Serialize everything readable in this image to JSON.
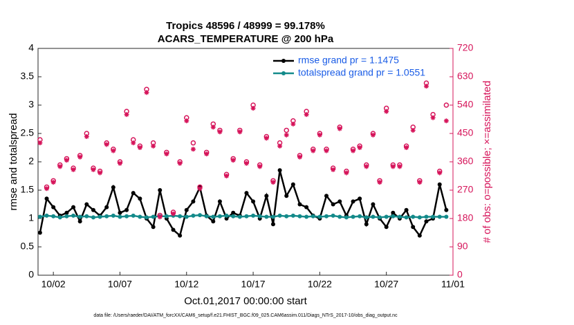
{
  "chart_data": {
    "type": "line",
    "title": "Tropics 48596 / 48999 = 99.178%",
    "subtitle": "ACARS_TEMPERATURE @ 200 hPa",
    "xlabel": "Oct.01,2017 00:00:00 start",
    "ylabel": "rmse and totalspread",
    "y2label": "# of obs: o=possible; ×=assimilated",
    "footnote": "data file: /Users/raeder/DAI/ATM_forcXX/CAM6_setup/f.e21.FHIST_BGC.f09_025.CAM6assim.011/Diags_NTrS_2017-10/obs_diag_output.nc",
    "x": [
      0,
      0.5,
      1,
      1.5,
      2,
      2.5,
      3,
      3.5,
      4,
      4.5,
      5,
      5.5,
      6,
      6.5,
      7,
      7.5,
      8,
      8.5,
      9,
      9.5,
      10,
      10.5,
      11,
      11.5,
      12,
      12.5,
      13,
      13.5,
      14,
      14.5,
      15,
      15.5,
      16,
      16.5,
      17,
      17.5,
      18,
      18.5,
      19,
      19.5,
      20,
      20.5,
      21,
      21.5,
      22,
      22.5,
      23,
      23.5,
      24,
      24.5,
      25,
      25.5,
      26,
      26.5,
      27,
      27.5,
      28,
      28.5,
      29,
      29.5,
      30,
      30.5
    ],
    "xlim": [
      -0.15,
      31
    ],
    "xticks": [
      {
        "value": 1,
        "label": "10/02"
      },
      {
        "value": 6,
        "label": "10/07"
      },
      {
        "value": 11,
        "label": "10/12"
      },
      {
        "value": 16,
        "label": "10/17"
      },
      {
        "value": 21,
        "label": "10/22"
      },
      {
        "value": 26,
        "label": "10/27"
      },
      {
        "value": 31,
        "label": "11/01"
      }
    ],
    "ylim": [
      0,
      4
    ],
    "yticks": [
      0,
      0.5,
      1,
      1.5,
      2,
      2.5,
      3,
      3.5,
      4
    ],
    "y2lim": [
      0,
      720
    ],
    "y2ticks": [
      0,
      90,
      180,
      270,
      360,
      450,
      540,
      630,
      720
    ],
    "legend": "upper right",
    "series": [
      {
        "name": "rmse grand pr = 1.1475",
        "color": "#000000",
        "marker": "filled",
        "values": [
          0.75,
          1.35,
          1.2,
          1.05,
          1.1,
          1.2,
          0.95,
          1.25,
          1.15,
          1.05,
          1.2,
          1.55,
          1.1,
          1.15,
          1.45,
          1.35,
          1.0,
          0.85,
          1.5,
          1.0,
          0.8,
          0.7,
          1.15,
          1.3,
          1.55,
          1.05,
          0.95,
          1.3,
          1.0,
          1.1,
          1.05,
          1.45,
          1.3,
          1.0,
          1.4,
          0.9,
          1.85,
          1.4,
          1.6,
          1.25,
          1.2,
          1.05,
          1.0,
          1.4,
          1.25,
          1.3,
          1.05,
          1.3,
          1.35,
          0.9,
          1.25,
          1.0,
          0.85,
          1.1,
          1.0,
          1.15,
          0.85,
          0.7,
          0.95,
          1.0,
          1.6,
          1.15
        ]
      },
      {
        "name": "totalspread grand pr = 1.0551",
        "color": "#138a8a",
        "marker": "filled",
        "values": [
          1.03,
          1.05,
          1.04,
          1.02,
          1.04,
          1.05,
          1.03,
          1.04,
          1.02,
          1.03,
          1.04,
          1.05,
          1.03,
          1.04,
          1.05,
          1.03,
          1.02,
          1.03,
          1.04,
          1.04,
          1.05,
          1.04,
          1.03,
          1.05,
          1.06,
          1.04,
          1.03,
          1.04,
          1.05,
          1.04,
          1.03,
          1.04,
          1.05,
          1.04,
          1.03,
          1.03,
          1.05,
          1.04,
          1.05,
          1.04,
          1.03,
          1.04,
          1.03,
          1.04,
          1.05,
          1.03,
          1.02,
          1.03,
          1.04,
          1.02,
          1.03,
          1.02,
          1.03,
          1.04,
          1.03,
          1.02,
          1.03,
          1.02,
          1.03,
          1.03,
          1.03,
          1.03
        ]
      },
      {
        "color": "#d6145a",
        "marker": "circle",
        "axis": "y2",
        "values": [
          430,
          280,
          300,
          350,
          370,
          340,
          380,
          450,
          340,
          330,
          420,
          400,
          360,
          520,
          430,
          410,
          590,
          420,
          190,
          390,
          200,
          360,
          500,
          420,
          280,
          390,
          480,
          460,
          320,
          370,
          460,
          360,
          540,
          350,
          440,
          300,
          420,
          460,
          490,
          380,
          520,
          400,
          450,
          400,
          340,
          470,
          330,
          400,
          410,
          350,
          450,
          300,
          530,
          350,
          350,
          410,
          470,
          300,
          610,
          510,
          330,
          540
        ]
      },
      {
        "color": "#d6145a",
        "marker": "star",
        "axis": "y2",
        "values": [
          420,
          275,
          295,
          345,
          365,
          335,
          375,
          440,
          335,
          325,
          415,
          395,
          355,
          510,
          420,
          405,
          580,
          410,
          185,
          385,
          195,
          355,
          490,
          400,
          275,
          385,
          470,
          455,
          315,
          365,
          455,
          355,
          530,
          345,
          435,
          295,
          410,
          445,
          480,
          375,
          510,
          395,
          445,
          395,
          335,
          465,
          325,
          395,
          405,
          345,
          445,
          295,
          520,
          345,
          345,
          405,
          460,
          295,
          600,
          500,
          325,
          490
        ]
      }
    ]
  }
}
